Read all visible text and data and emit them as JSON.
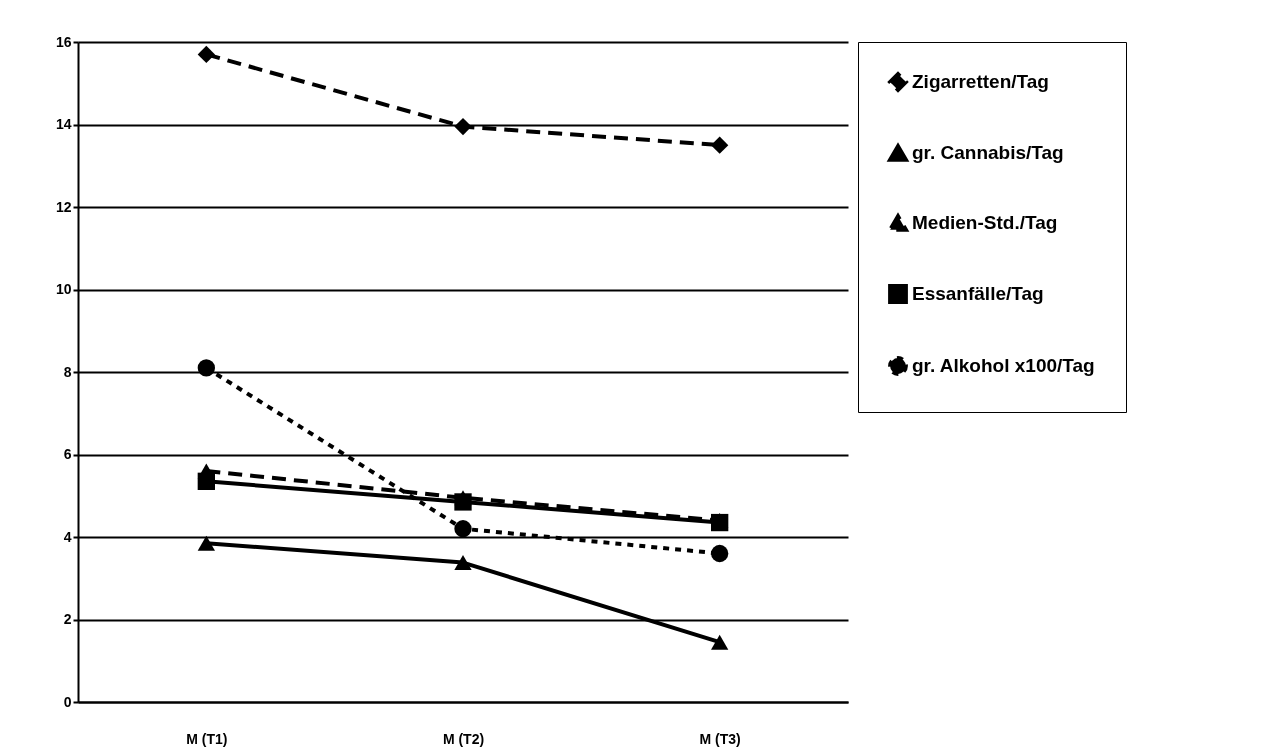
{
  "chart_data": {
    "type": "line",
    "categories": [
      "M (T1)",
      "M (T2)",
      "M (T3)"
    ],
    "series": [
      {
        "name": "Zigarretten/Tag",
        "color": "#000000",
        "values": [
          15.7,
          13.95,
          13.5
        ],
        "marker": "diamond",
        "line_style": "dashed"
      },
      {
        "name": "gr. Cannabis/Tag",
        "color": "#000000",
        "values": [
          3.85,
          3.38,
          1.45
        ],
        "marker": "triangle",
        "line_style": "solid"
      },
      {
        "name": "Medien-Std./Tag",
        "color": "#000000",
        "values": [
          5.6,
          4.95,
          4.4
        ],
        "marker": "triangle",
        "line_style": "dashed"
      },
      {
        "name": "Essanfälle/Tag",
        "color": "#000000",
        "values": [
          5.35,
          4.85,
          4.35
        ],
        "marker": "square",
        "line_style": "solid"
      },
      {
        "name": "gr. Alkohol x100/Tag",
        "color": "#000000",
        "values": [
          8.1,
          4.2,
          3.6
        ],
        "marker": "circle",
        "line_style": "dotted"
      }
    ],
    "ylim": [
      0,
      16
    ],
    "yticks": [
      0,
      2,
      4,
      6,
      8,
      10,
      12,
      14,
      16
    ],
    "grid": "y",
    "legend": "top right"
  }
}
